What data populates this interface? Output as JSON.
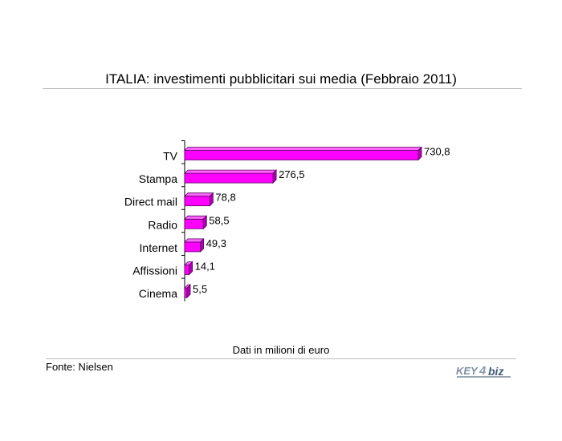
{
  "title": "ITALIA: investimenti pubblicitari sui media (Febbraio 2011)",
  "footnote": "Dati in milioni di euro",
  "source": "Fonte: Nielsen",
  "logo_text": "KEY4biz",
  "colors": {
    "bar": "#ff00ff",
    "bar_dark": "#b000b0",
    "bar_edge": "#5a0060"
  },
  "chart_data": {
    "type": "bar",
    "orientation": "horizontal",
    "categories": [
      "TV",
      "Stampa",
      "Direct mail",
      "Radio",
      "Internet",
      "Affissioni",
      "Cinema"
    ],
    "values": [
      730.8,
      276.5,
      78.8,
      58.5,
      49.3,
      14.1,
      5.5
    ],
    "value_labels": [
      "730,8",
      "276,5",
      "78,8",
      "58,5",
      "49,3",
      "14,1",
      "5,5"
    ],
    "title": "ITALIA: investimenti pubblicitari sui media (Febbraio 2011)",
    "xlabel": "Dati in milioni di euro",
    "ylabel": "",
    "grid": false,
    "legend": "none"
  }
}
